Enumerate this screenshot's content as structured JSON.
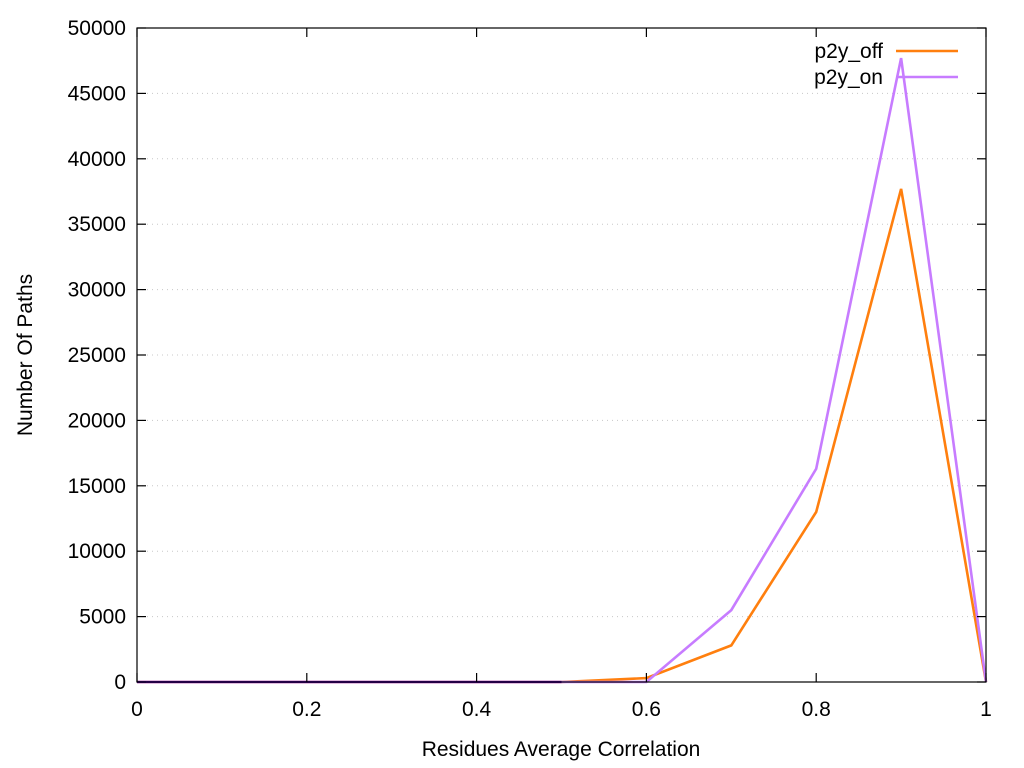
{
  "chart_data": {
    "type": "line",
    "title": "",
    "xlabel": "Residues Average Correlation",
    "ylabel": "Number Of Paths",
    "xlim": [
      0,
      1
    ],
    "ylim": [
      0,
      50000
    ],
    "x_ticks": [
      0,
      0.2,
      0.4,
      0.6,
      0.8,
      1
    ],
    "x_tick_labels": [
      "0",
      "0.2",
      "0.4",
      "0.6",
      "0.8",
      "1"
    ],
    "y_ticks": [
      0,
      5000,
      10000,
      15000,
      20000,
      25000,
      30000,
      35000,
      40000,
      45000,
      50000
    ],
    "y_tick_labels": [
      "0",
      "5000",
      "10000",
      "15000",
      "20000",
      "25000",
      "30000",
      "35000",
      "40000",
      "45000",
      "50000"
    ],
    "grid": "horizontal dotted",
    "legend_position": "top-right",
    "x": [
      0,
      0.1,
      0.2,
      0.3,
      0.4,
      0.5,
      0.6,
      0.7,
      0.8,
      0.9,
      1.0
    ],
    "series": [
      {
        "name": "p2y_off",
        "color": "#ff7f0e",
        "values": [
          0,
          0,
          0,
          0,
          0,
          0,
          300,
          2800,
          13000,
          37700,
          0
        ]
      },
      {
        "name": "p2y_on",
        "color": "#c77cff",
        "values": [
          0,
          0,
          0,
          0,
          0,
          0,
          0,
          5500,
          16300,
          47700,
          0
        ]
      }
    ],
    "baseline_color": "#5a00b0"
  }
}
